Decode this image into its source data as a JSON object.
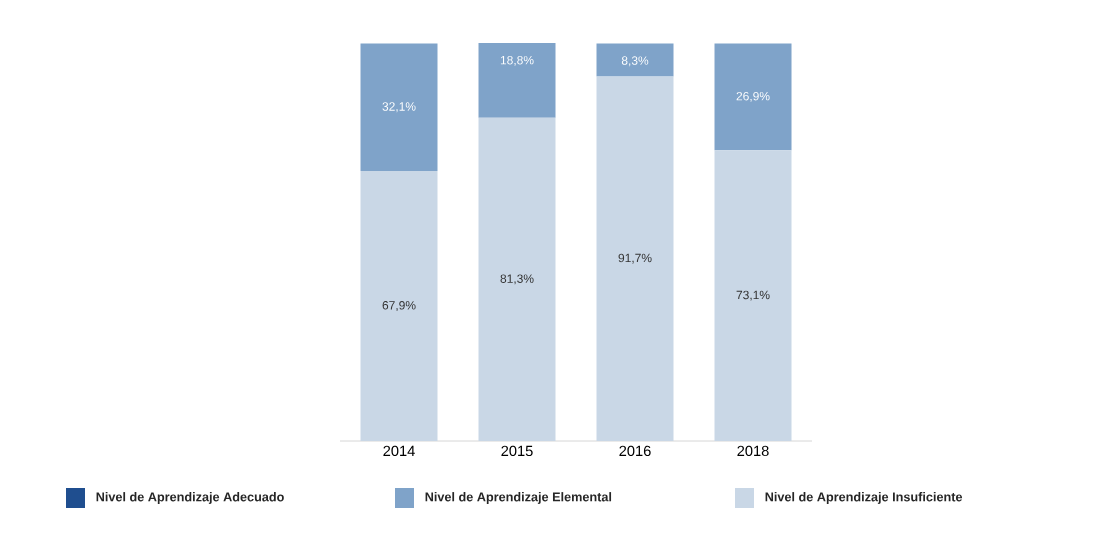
{
  "chart_data": {
    "type": "bar",
    "stacked": true,
    "categories": [
      "2014",
      "2015",
      "2016",
      "2018"
    ],
    "series": [
      {
        "name": "Nivel de Aprendizaje Insuficiente",
        "color": "#c9d7e6",
        "values": [
          67.9,
          81.3,
          91.7,
          73.1
        ],
        "value_labels": [
          "67,9%",
          "81,3%",
          "91,7%",
          "73,1%"
        ]
      },
      {
        "name": "Nivel de Aprendizaje Elemental",
        "color": "#7fa3c9",
        "values": [
          32.1,
          18.8,
          8.3,
          26.9
        ],
        "value_labels": [
          "32,1%",
          "18,8%",
          "8,3%",
          "26,9%"
        ]
      },
      {
        "name": "Nivel de Aprendizaje Adecuado",
        "color": "#1f4e8f",
        "values": [
          null,
          null,
          null,
          null
        ]
      }
    ],
    "legend": "bottom"
  }
}
